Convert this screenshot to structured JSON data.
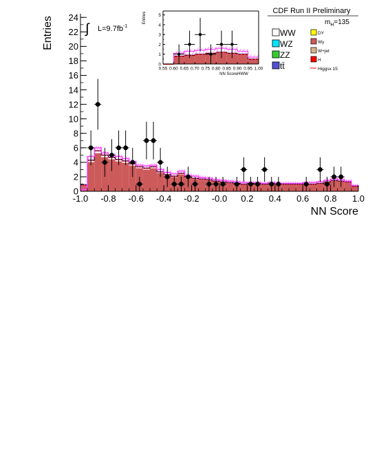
{
  "header": {
    "title": "CDF Run II Preliminary",
    "mass_label": "m",
    "mass_sub": "H",
    "mass_value": "=135"
  },
  "lumi": {
    "integral": "∫",
    "text": "L=9.7fb",
    "sup": "-1"
  },
  "colors": {
    "WW": "#ffffff",
    "WZ": "#00e5ff",
    "ZZ": "#33cc33",
    "ttbar": "#5050d0",
    "DY": "#ffff00",
    "Wgamma": "#cc5a5a",
    "Wjet": "#d9b38c",
    "H": "#ff0000",
    "higgs_line": "#ff33ff",
    "error_band": "#ff66ff",
    "frame": "#000000"
  },
  "legend": {
    "left": [
      {
        "key": "WW",
        "label": "WW"
      },
      {
        "key": "WZ",
        "label": "WZ"
      },
      {
        "key": "ZZ",
        "label": "ZZ"
      },
      {
        "key": "ttbar",
        "label": "tt̄"
      }
    ],
    "right": [
      {
        "key": "DY",
        "label": "DY"
      },
      {
        "key": "Wgamma",
        "label": "Wγ"
      },
      {
        "key": "Wjet",
        "label": "W+jet"
      },
      {
        "key": "H",
        "label": "H"
      },
      {
        "key": "higgs_line",
        "label": "Higgsx 15"
      }
    ]
  },
  "chart_data": [
    {
      "type": "bar",
      "name": "main",
      "xlabel": "NN Score",
      "ylabel": "Entries",
      "xlim": [
        -1.0,
        1.0
      ],
      "ylim": [
        0,
        24.5
      ],
      "xticks": [
        -1.0,
        -0.8,
        -0.6,
        -0.4,
        -0.2,
        -0.0,
        0.2,
        0.4,
        0.6,
        0.8,
        1.0
      ],
      "xtick_labels": [
        "-1.0",
        "-0.8",
        "-0.6",
        "-0.4",
        "-0.2",
        "-0.0",
        "0.2",
        "0.4",
        "0.6",
        "0.8",
        "1.0"
      ],
      "yticks": [
        0,
        2,
        4,
        6,
        8,
        10,
        12,
        14,
        16,
        18,
        20,
        22,
        24
      ],
      "ytick_labels": [
        "0",
        "2",
        "4",
        "6",
        "8",
        "10",
        "12",
        "14",
        "16",
        "18",
        "20",
        "22",
        "24"
      ],
      "bin_edges": [
        -1.0,
        -0.95,
        -0.9,
        -0.85,
        -0.8,
        -0.75,
        -0.7,
        -0.65,
        -0.6,
        -0.55,
        -0.5,
        -0.45,
        -0.4,
        -0.35,
        -0.3,
        -0.25,
        -0.2,
        -0.15,
        -0.1,
        -0.05,
        0.0,
        0.05,
        0.1,
        0.15,
        0.2,
        0.25,
        0.3,
        0.35,
        0.4,
        0.45,
        0.5,
        0.55,
        0.6,
        0.65,
        0.7,
        0.75,
        0.8,
        0.85,
        0.9,
        0.95,
        1.0
      ],
      "background_total": [
        0.9,
        4.3,
        5.6,
        5.0,
        4.7,
        4.4,
        4.2,
        3.8,
        3.4,
        3.2,
        3.4,
        2.7,
        2.3,
        2.1,
        2.5,
        2.0,
        1.8,
        1.7,
        1.6,
        1.4,
        1.3,
        1.2,
        1.1,
        1.0,
        1.1,
        1.1,
        1.0,
        1.1,
        1.0,
        1.0,
        1.0,
        1.0,
        1.0,
        1.0,
        1.1,
        1.3,
        1.5,
        1.4,
        1.3,
        0.7
      ],
      "ww_fraction": 0.06,
      "higgs_x15": [
        0.2,
        4.8,
        6.0,
        5.3,
        5.0,
        4.8,
        4.5,
        4.1,
        3.6,
        3.5,
        3.6,
        3.0,
        2.6,
        2.4,
        2.8,
        2.2,
        2.1,
        1.9,
        1.8,
        1.6,
        1.5,
        1.4,
        1.3,
        1.2,
        1.2,
        1.2,
        1.1,
        1.2,
        1.1,
        1.1,
        1.1,
        1.1,
        1.2,
        1.2,
        1.3,
        1.5,
        1.7,
        1.6,
        1.4,
        0.8
      ],
      "data_points": [
        {
          "x": -0.925,
          "y": 6,
          "err": 2.4
        },
        {
          "x": -0.875,
          "y": 12,
          "err": 3.5
        },
        {
          "x": -0.825,
          "y": 4,
          "err": 2.0
        },
        {
          "x": -0.775,
          "y": 5,
          "err": 2.2
        },
        {
          "x": -0.725,
          "y": 6,
          "err": 2.4
        },
        {
          "x": -0.675,
          "y": 6,
          "err": 2.4
        },
        {
          "x": -0.625,
          "y": 4,
          "err": 2.0
        },
        {
          "x": -0.575,
          "y": 1,
          "err": 1.0
        },
        {
          "x": -0.525,
          "y": 7,
          "err": 2.6
        },
        {
          "x": -0.475,
          "y": 7,
          "err": 2.6
        },
        {
          "x": -0.425,
          "y": 4,
          "err": 2.0
        },
        {
          "x": -0.375,
          "y": 2,
          "err": 1.4
        },
        {
          "x": -0.325,
          "y": 1,
          "err": 1.0
        },
        {
          "x": -0.275,
          "y": 1,
          "err": 1.0
        },
        {
          "x": -0.225,
          "y": 2,
          "err": 1.4
        },
        {
          "x": -0.175,
          "y": 1,
          "err": 1.0
        },
        {
          "x": -0.075,
          "y": 1,
          "err": 1.0
        },
        {
          "x": -0.025,
          "y": 1,
          "err": 1.0
        },
        {
          "x": 0.025,
          "y": 1,
          "err": 1.0
        },
        {
          "x": 0.125,
          "y": 1,
          "err": 1.0
        },
        {
          "x": 0.175,
          "y": 3,
          "err": 1.7
        },
        {
          "x": 0.225,
          "y": 1,
          "err": 1.0
        },
        {
          "x": 0.275,
          "y": 1,
          "err": 1.0
        },
        {
          "x": 0.325,
          "y": 3,
          "err": 1.7
        },
        {
          "x": 0.375,
          "y": 1,
          "err": 1.0
        },
        {
          "x": 0.425,
          "y": 1,
          "err": 1.0
        },
        {
          "x": 0.625,
          "y": 1,
          "err": 1.0
        },
        {
          "x": 0.725,
          "y": 3,
          "err": 1.7
        },
        {
          "x": 0.775,
          "y": 1,
          "err": 1.0
        },
        {
          "x": 0.825,
          "y": 2,
          "err": 1.4
        },
        {
          "x": 0.875,
          "y": 2,
          "err": 1.4
        }
      ]
    },
    {
      "type": "bar",
      "name": "inset",
      "xlabel": "NN ScoreHWW",
      "ylabel": "Entries",
      "xlim": [
        0.55,
        1.0
      ],
      "ylim": [
        0,
        5.4
      ],
      "xticks": [
        0.55,
        0.6,
        0.65,
        0.7,
        0.75,
        0.8,
        0.85,
        0.9,
        0.95,
        1.0
      ],
      "xtick_labels": [
        "0.55",
        "0.60",
        "0.65",
        "0.70",
        "0.75",
        "0.80",
        "0.85",
        "0.90",
        "0.95",
        "1.00"
      ],
      "yticks": [
        0,
        1,
        2,
        3,
        4,
        5
      ],
      "ytick_labels": [
        "0",
        "1",
        "2",
        "3",
        "4",
        "5"
      ],
      "bin_edges": [
        0.55,
        0.6,
        0.65,
        0.7,
        0.75,
        0.8,
        0.85,
        0.9,
        0.95,
        1.0
      ],
      "background_total": [
        0.0,
        0.8,
        0.9,
        1.0,
        1.1,
        1.2,
        1.1,
        1.0,
        0.5
      ],
      "higgs_x15": [
        0.0,
        1.1,
        1.3,
        1.4,
        1.5,
        1.6,
        1.5,
        1.3,
        0.7
      ],
      "data_points": [
        {
          "x": 0.625,
          "y": 1,
          "err": 1.0
        },
        {
          "x": 0.675,
          "y": 2,
          "err": 1.4
        },
        {
          "x": 0.725,
          "y": 3,
          "err": 1.7
        },
        {
          "x": 0.775,
          "y": 1,
          "err": 1.0
        },
        {
          "x": 0.825,
          "y": 2,
          "err": 1.4
        },
        {
          "x": 0.875,
          "y": 2,
          "err": 1.4
        }
      ]
    }
  ]
}
